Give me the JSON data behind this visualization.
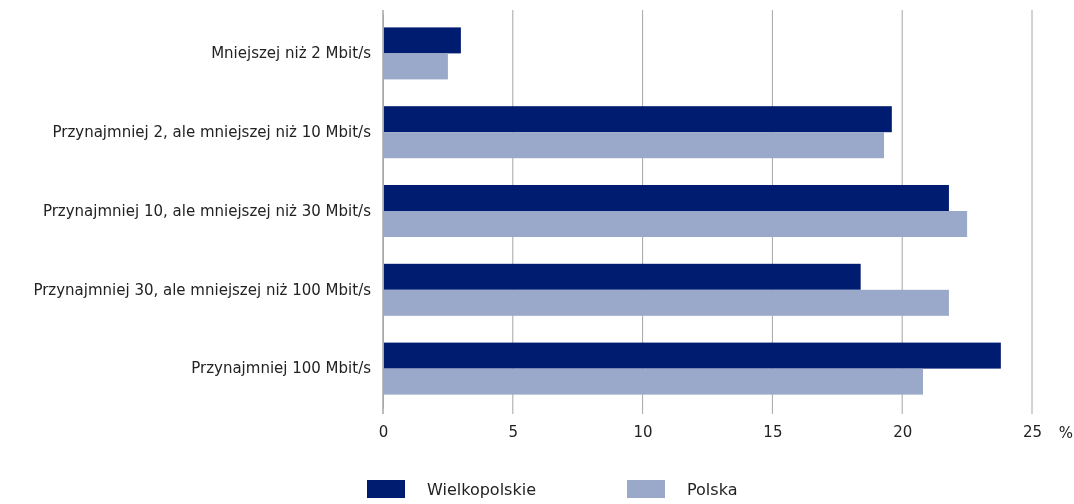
{
  "chart_data": {
    "type": "bar",
    "orientation": "horizontal",
    "categories": [
      "Mniejszej niż 2 Mbit/s",
      "Przynajmniej 2, ale mniejszej niż 10 Mbit/s",
      "Przynajmniej 10, ale mniejszej niż 30 Mbit/s",
      "Przynajmniej 30, ale mniejszej niż 100 Mbit/s",
      "Przynajmniej 100 Mbit/s"
    ],
    "series": [
      {
        "name": "Wielkopolskie",
        "color": "#001c71",
        "values": [
          3.0,
          19.6,
          21.8,
          18.4,
          23.8
        ]
      },
      {
        "name": "Polska",
        "color": "#9aa8c9",
        "values": [
          2.5,
          19.3,
          22.5,
          21.8,
          20.8
        ]
      }
    ],
    "xlabel": "%",
    "xlim": [
      0,
      25
    ],
    "xticks": [
      0,
      5,
      10,
      15,
      20,
      25
    ],
    "grid": "x",
    "legend": "bottom"
  }
}
